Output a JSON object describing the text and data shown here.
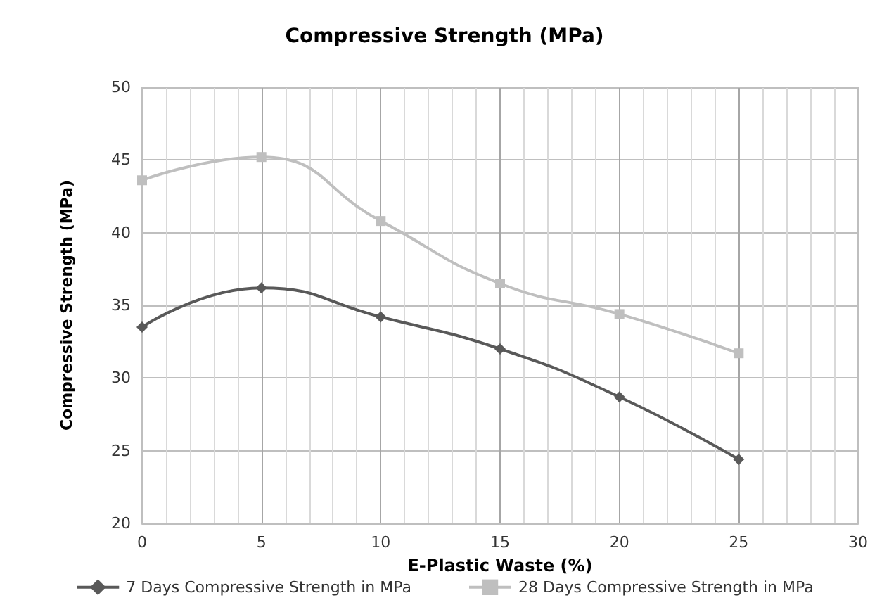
{
  "chart_data": {
    "type": "line",
    "title": "Compressive Strength (MPa)",
    "xlabel": "E-Plastic Waste (%)",
    "ylabel": "Compressive Strength (MPa)",
    "x": [
      0,
      5,
      10,
      15,
      20,
      25
    ],
    "series": [
      {
        "name": "7 Days Compressive Strength in MPa",
        "color": "#595959",
        "marker": "diamond",
        "values": [
          33.5,
          36.2,
          34.2,
          32.0,
          28.7,
          24.4
        ]
      },
      {
        "name": "28 Days Compressive Strength in MPa",
        "color": "#bfbfbf",
        "marker": "square",
        "values": [
          43.6,
          45.2,
          40.8,
          36.5,
          34.4,
          31.7
        ]
      }
    ],
    "xlim": [
      0,
      30
    ],
    "xticks": [
      0,
      5,
      10,
      15,
      20,
      25,
      30
    ],
    "ylim": [
      20,
      50
    ],
    "yticks": [
      20,
      25,
      30,
      35,
      40,
      45,
      50
    ],
    "grid": true,
    "legend": "bottom"
  }
}
